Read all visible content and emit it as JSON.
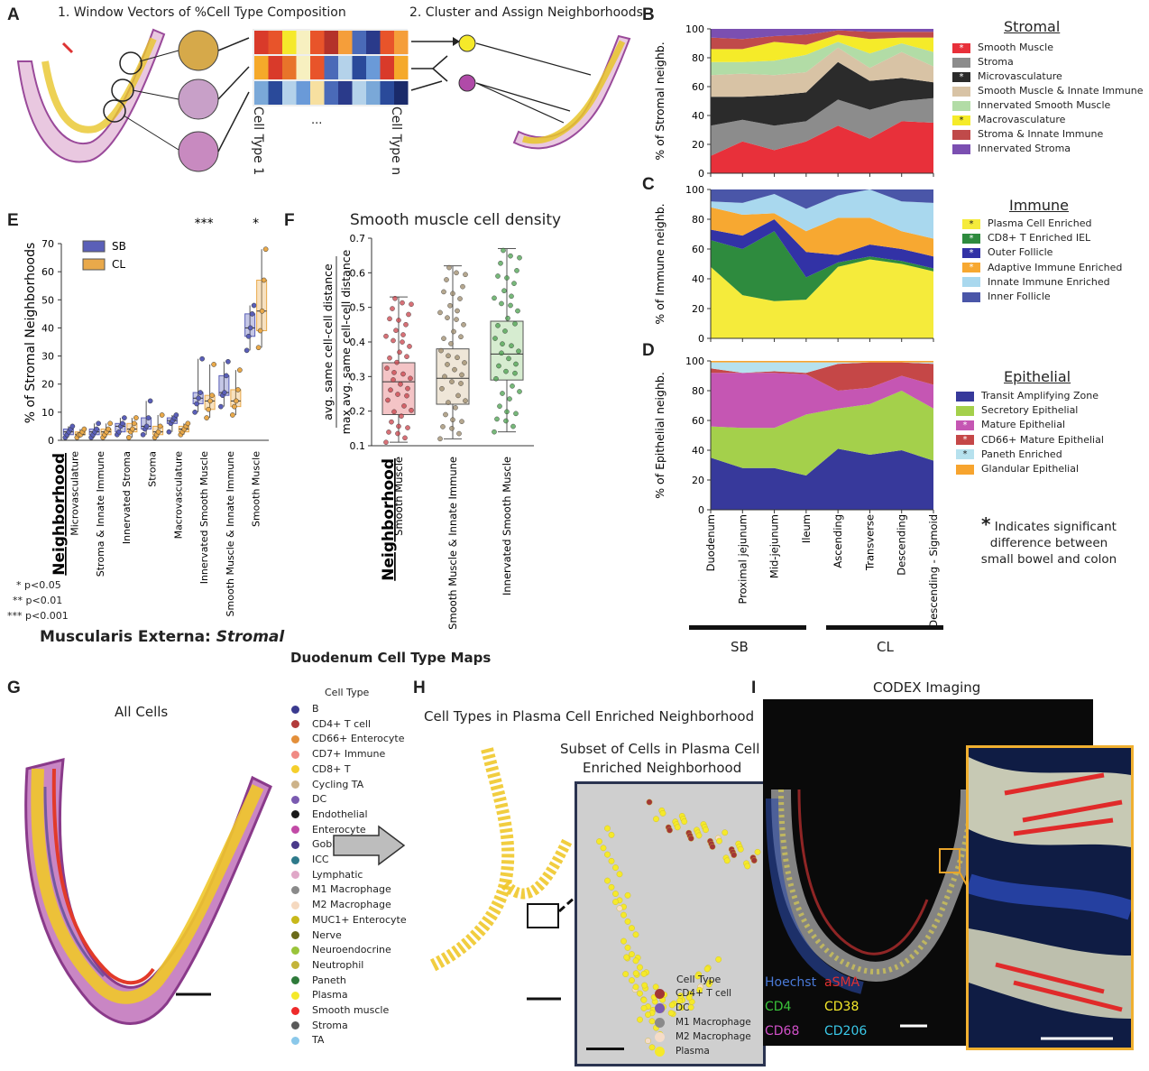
{
  "panels": {
    "A": "A",
    "B": "B",
    "C": "C",
    "D": "D",
    "E": "E",
    "F": "F",
    "G": "G",
    "H": "H",
    "I": "I"
  },
  "panelA": {
    "step1": "1. Window Vectors of %Cell Type Composition",
    "step2": "2. Cluster and Assign Neighborhoods",
    "celltype1": "Cell Type 1",
    "celltypen": "Cell Type n",
    "ellipsis": "..."
  },
  "stacked_axis": {
    "x_labels": [
      "Duodenum",
      "Proximal jejunum",
      "Mid-jejunum",
      "Ileum",
      "Ascending",
      "Transverse",
      "Descending",
      "Descending - Sigmoid"
    ],
    "group_sb": "SB",
    "group_cl": "CL",
    "yticks": [
      "0",
      "20",
      "40",
      "60",
      "80",
      "100"
    ]
  },
  "note": {
    "star": "*",
    "line1": "Indicates significant",
    "line2": "difference between",
    "line3": "small bowel and colon"
  },
  "chart_data": [
    {
      "type": "area",
      "panel": "B",
      "ylabel": "% of Stromal neighb.",
      "ylim": [
        0,
        100
      ],
      "legend_title": "Stromal",
      "x": [
        "Duodenum",
        "Proximal jejunum",
        "Mid-jejunum",
        "Ileum",
        "Ascending",
        "Transverse",
        "Descending",
        "Descending - Sigmoid"
      ],
      "series": [
        {
          "name": "Smooth Muscle",
          "color": "#e8303a",
          "star": "*",
          "values": [
            12,
            22,
            16,
            22,
            33,
            24,
            36,
            35
          ]
        },
        {
          "name": "Stroma",
          "color": "#8c8c8c",
          "star": "",
          "values": [
            21,
            15,
            17,
            14,
            18,
            20,
            14,
            17
          ]
        },
        {
          "name": "Microvasculature",
          "color": "#2b2b2b",
          "star": "*",
          "values": [
            20,
            16,
            21,
            20,
            26,
            20,
            16,
            11
          ]
        },
        {
          "name": "Smooth Muscle & Innate Immune",
          "color": "#d8c3a5",
          "star": "",
          "values": [
            15,
            16,
            14,
            14,
            10,
            9,
            18,
            11
          ]
        },
        {
          "name": "Innervated Smooth Muscle",
          "color": "#b2dca6",
          "star": "",
          "values": [
            9,
            8,
            10,
            12,
            4,
            10,
            6,
            10
          ]
        },
        {
          "name": "Macrovasculature",
          "color": "#f5eb29",
          "star": "*",
          "values": [
            9,
            9,
            13,
            7,
            5,
            10,
            4,
            10
          ]
        },
        {
          "name": "Stroma & Innate Immune",
          "color": "#c04a4a",
          "star": "",
          "values": [
            8,
            7,
            4,
            7,
            3,
            5,
            4,
            4
          ]
        },
        {
          "name": "Innervated Stroma",
          "color": "#7b4fb1",
          "star": "",
          "values": [
            6,
            7,
            5,
            4,
            1,
            2,
            2,
            2
          ]
        }
      ]
    },
    {
      "type": "area",
      "panel": "C",
      "ylabel": "% of Immune neighb.",
      "ylim": [
        0,
        100
      ],
      "legend_title": "Immune",
      "x": [
        "Duodenum",
        "Proximal jejunum",
        "Mid-jejunum",
        "Ileum",
        "Ascending",
        "Transverse",
        "Descending",
        "Descending - Sigmoid"
      ],
      "series": [
        {
          "name": "Plasma Cell Enriched",
          "color": "#f5eb3b",
          "star": "*",
          "values": [
            48,
            29,
            25,
            26,
            48,
            53,
            50,
            45
          ]
        },
        {
          "name": "CD8+ T Enriched IEL",
          "color": "#2e8b3e",
          "star": "*",
          "values": [
            18,
            31,
            47,
            15,
            3,
            2,
            2,
            2
          ]
        },
        {
          "name": "Outer Follicle",
          "color": "#3232a6",
          "star": "*",
          "values": [
            7,
            9,
            8,
            17,
            5,
            8,
            8,
            8
          ]
        },
        {
          "name": "Adaptive Immune Enriched",
          "color": "#f7a831",
          "star": "*",
          "values": [
            15,
            14,
            4,
            14,
            25,
            18,
            12,
            12
          ]
        },
        {
          "name": "Innate Immune Enriched",
          "color": "#a9d8ee",
          "star": "",
          "values": [
            4,
            8,
            13,
            15,
            15,
            19,
            20,
            24
          ]
        },
        {
          "name": "Inner Follicle",
          "color": "#4a56a8",
          "star": "",
          "values": [
            8,
            9,
            3,
            13,
            4,
            0,
            8,
            9
          ]
        }
      ]
    },
    {
      "type": "area",
      "panel": "D",
      "ylabel": "% of Epithelial neighb.",
      "ylim": [
        0,
        100
      ],
      "legend_title": "Epithelial",
      "x": [
        "Duodenum",
        "Proximal jejunum",
        "Mid-jejunum",
        "Ileum",
        "Ascending",
        "Transverse",
        "Descending",
        "Descending - Sigmoid"
      ],
      "series": [
        {
          "name": "Transit Amplifying Zone",
          "color": "#37399b",
          "star": "",
          "values": [
            35,
            28,
            28,
            23,
            41,
            37,
            40,
            33
          ]
        },
        {
          "name": "Secretory Epithelial",
          "color": "#a4d04b",
          "star": "",
          "values": [
            21,
            27,
            27,
            41,
            27,
            34,
            40,
            35
          ]
        },
        {
          "name": "Mature Epithelial",
          "color": "#c556b3",
          "star": "*",
          "values": [
            36,
            37,
            37,
            27,
            12,
            11,
            10,
            16
          ]
        },
        {
          "name": "CD66+ Mature Epithelial",
          "color": "#c54747",
          "star": "*",
          "values": [
            3,
            0,
            1,
            1,
            18,
            17,
            9,
            14
          ]
        },
        {
          "name": "Paneth Enriched",
          "color": "#b6e1ee",
          "star": "*",
          "values": [
            4,
            7,
            6,
            7,
            1,
            0,
            0,
            1
          ]
        },
        {
          "name": "Glandular Epithelial",
          "color": "#f7a42e",
          "star": "",
          "values": [
            1,
            1,
            1,
            1,
            1,
            1,
            1,
            1
          ]
        }
      ]
    },
    {
      "type": "box",
      "panel": "E",
      "ylabel": "% of Stromal Neighborhoods",
      "ylim": [
        0,
        70
      ],
      "yticks": [
        "0",
        "10",
        "20",
        "30",
        "40",
        "50",
        "60",
        "70"
      ],
      "xlabel": "Neighborhood",
      "categories": [
        "Microvasculature",
        "Stroma & Innate Immune",
        "Innervated Stroma",
        "Stroma",
        "Macrovasculature",
        "Innervated Smooth Muscle",
        "Smooth Muscle & Innate Immune",
        "Smooth Muscle"
      ],
      "significance": [
        "",
        "",
        "",
        "",
        "",
        "***",
        "",
        "*"
      ],
      "series": [
        {
          "name": "SB",
          "color": "#5a5fb8",
          "boxes": [
            [
              1,
              2,
              3,
              4,
              5
            ],
            [
              1,
              2,
              3,
              4,
              6
            ],
            [
              2,
              3,
              5,
              6,
              8
            ],
            [
              2,
              4,
              5,
              8,
              14
            ],
            [
              3,
              6,
              7,
              8,
              9
            ],
            [
              10,
              13,
              15,
              17,
              29
            ],
            [
              12,
              16,
              17,
              23,
              28
            ],
            [
              32,
              37,
              40,
              45,
              48
            ]
          ]
        },
        {
          "name": "CL",
          "color": "#e9a94a",
          "boxes": [
            [
              1,
              2,
              2,
              3,
              4
            ],
            [
              1,
              2,
              3,
              4,
              6
            ],
            [
              1,
              3,
              4,
              6,
              8
            ],
            [
              1,
              2,
              3,
              5,
              9
            ],
            [
              2,
              3,
              4,
              5,
              6
            ],
            [
              8,
              11,
              14,
              16,
              27
            ],
            [
              9,
              12,
              14,
              18,
              25
            ],
            [
              33,
              39,
              46,
              57,
              68
            ]
          ]
        }
      ],
      "pvals": [
        "* p<0.05",
        "** p<0.01",
        "*** p<0.001"
      ],
      "subtitle_prefix": "Muscularis Externa: ",
      "subtitle_em": "Stromal"
    },
    {
      "type": "box",
      "panel": "F",
      "title": "Smooth muscle cell density",
      "ylabel_top": "avg. same cell-cell distance",
      "ylabel_bottom": "max avg. same cell-cell distance",
      "ylim": [
        0.1,
        0.7
      ],
      "yticks": [
        "0.1",
        "0.2",
        "0.3",
        "0.4",
        "0.5",
        "0.6",
        "0.7"
      ],
      "xlabel": "Neighborhood",
      "categories": [
        "Smooth Muscle",
        "Smooth Muscle & Innate Immune",
        "Innervated Smooth Muscle"
      ],
      "colors": [
        "#c9414a",
        "#9c8a6a",
        "#4aa04d"
      ],
      "fills": [
        "#f4c4c6",
        "#efe6d8",
        "#d6ecd0"
      ],
      "boxes": [
        [
          0.11,
          0.19,
          0.285,
          0.34,
          0.53
        ],
        [
          0.12,
          0.22,
          0.295,
          0.38,
          0.62
        ],
        [
          0.14,
          0.29,
          0.365,
          0.46,
          0.67
        ]
      ]
    }
  ],
  "section_title": "Duodenum Cell Type Maps",
  "panelG": {
    "title": "All Cells",
    "legend_title": "Cell Type",
    "types": [
      {
        "name": "B",
        "color": "#3a3a8f"
      },
      {
        "name": "CD4+ T cell",
        "color": "#b23b3b"
      },
      {
        "name": "CD66+ Enterocyte",
        "color": "#e38f3a"
      },
      {
        "name": "CD7+ Immune",
        "color": "#f08a84"
      },
      {
        "name": "CD8+ T",
        "color": "#f5cf2b"
      },
      {
        "name": "Cycling TA",
        "color": "#cdb38a"
      },
      {
        "name": "DC",
        "color": "#7a5ab0"
      },
      {
        "name": "Endothelial",
        "color": "#1a1a1a"
      },
      {
        "name": "Enterocyte",
        "color": "#c24aa6"
      },
      {
        "name": "Goblet",
        "color": "#4a3a8a"
      },
      {
        "name": "ICC",
        "color": "#2e7a8a"
      },
      {
        "name": "Lymphatic",
        "color": "#e0a8c8"
      },
      {
        "name": "M1 Macrophage",
        "color": "#8a8a8a"
      },
      {
        "name": "M2 Macrophage",
        "color": "#f5d9c0"
      },
      {
        "name": "MUC1+ Enterocyte",
        "color": "#c8b81a"
      },
      {
        "name": "Nerve",
        "color": "#6a6a1a"
      },
      {
        "name": "Neuroendocrine",
        "color": "#9ac43a"
      },
      {
        "name": "Neutrophil",
        "color": "#c4b43a"
      },
      {
        "name": "Paneth",
        "color": "#2e7a3a"
      },
      {
        "name": "Plasma",
        "color": "#f5e92a"
      },
      {
        "name": "Smooth muscle",
        "color": "#ee2a2a"
      },
      {
        "name": "Stroma",
        "color": "#5a5a5a"
      },
      {
        "name": "TA",
        "color": "#8ac8ea"
      }
    ]
  },
  "panelH": {
    "title": "Cell Types in Plasma Cell Enriched Neighborhood",
    "subset_line1": "Subset of Cells in Plasma Cell",
    "subset_line2": "Enriched Neighborhood",
    "legend_title": "Cell Type",
    "types": [
      {
        "name": "CD4+ T cell",
        "color": "#a23636"
      },
      {
        "name": "DC",
        "color": "#7a5ab0"
      },
      {
        "name": "M1 Macrophage",
        "color": "#8a8a8a"
      },
      {
        "name": "M2 Macrophage",
        "color": "#f5dcc8"
      },
      {
        "name": "Plasma",
        "color": "#f5e92a"
      }
    ]
  },
  "panelI": {
    "title": "CODEX Imaging",
    "markers": [
      {
        "name": "Hoechst",
        "color": "#4a7ad8"
      },
      {
        "name": "aSMA",
        "color": "#e03030"
      },
      {
        "name": "CD4",
        "color": "#3ac43a"
      },
      {
        "name": "CD38",
        "color": "#f5e92a"
      },
      {
        "name": "CD68",
        "color": "#d050c8"
      },
      {
        "name": "CD206",
        "color": "#3ac8e8"
      }
    ]
  }
}
